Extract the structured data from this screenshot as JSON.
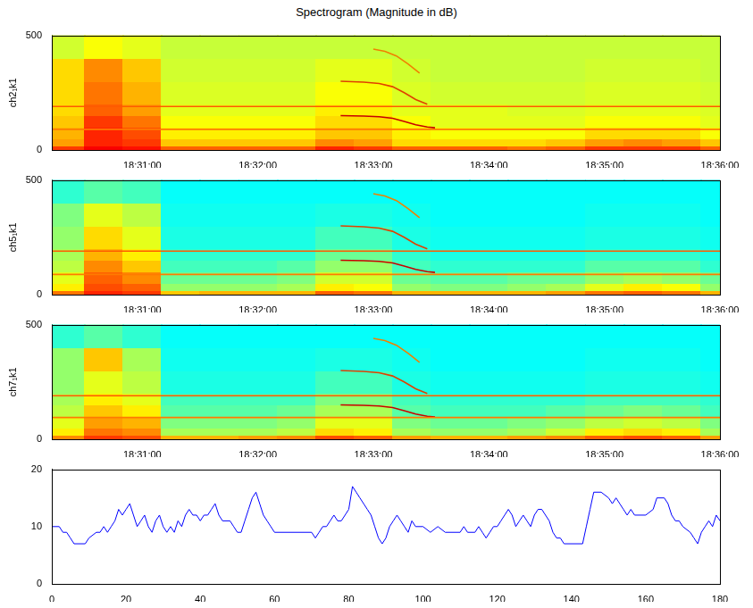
{
  "title": "Spectrogram (Magnitude in dB)",
  "chart_data": [
    {
      "type": "heatmap",
      "ylabel": "ch2₁k1",
      "xlim": [
        66613,
        66960
      ],
      "ylim": [
        0,
        500
      ],
      "xticks": [
        {
          "value": 66660,
          "label": "18:31:00"
        },
        {
          "value": 66720,
          "label": "18:32:00"
        },
        {
          "value": 66780,
          "label": "18:33:00"
        },
        {
          "value": 66840,
          "label": "18:34:00"
        },
        {
          "value": 66900,
          "label": "18:35:00"
        },
        {
          "value": 66960,
          "label": "18:36:00"
        }
      ],
      "yticks": [
        0,
        500
      ],
      "grid": false,
      "clim": [
        0,
        10
      ],
      "x_bins": [
        66613,
        66630,
        66650,
        66670,
        66690,
        66710,
        66730,
        66750,
        66770,
        66790,
        66810,
        66830,
        66850,
        66870,
        66890,
        66910,
        66930,
        66950,
        66960
      ],
      "y_bins": [
        0,
        20,
        50,
        100,
        150,
        200,
        300,
        400,
        500
      ],
      "cells": [
        [
          8.2,
          8.8,
          8.6,
          7.8,
          7.8,
          7.8,
          7.8,
          8.4,
          8.2,
          7.8,
          7.8,
          7.8,
          7.6,
          7.8,
          8.2,
          8.2,
          8.2,
          7.8
        ],
        [
          7.2,
          8.4,
          8.2,
          6.8,
          6.8,
          6.8,
          6.8,
          7.4,
          7.2,
          6.6,
          6.6,
          6.6,
          6.6,
          6.8,
          7.2,
          7.4,
          7.2,
          6.8
        ],
        [
          7,
          8.4,
          8,
          6.4,
          6.4,
          6.4,
          6.4,
          6.8,
          6.8,
          6.4,
          6.2,
          6.2,
          6.2,
          6.2,
          6.6,
          6.6,
          6.6,
          6.2
        ],
        [
          6.8,
          8.2,
          7.6,
          6.2,
          6.2,
          6.2,
          6.2,
          6.6,
          6.6,
          6.2,
          6,
          6,
          6,
          6,
          6.2,
          6.2,
          6.2,
          6
        ],
        [
          6.6,
          7.8,
          7.2,
          6,
          6,
          6,
          6,
          6.4,
          6.4,
          6,
          6,
          6,
          5.9,
          5.9,
          6,
          6,
          6,
          5.9
        ],
        [
          6.6,
          7.6,
          7,
          5.9,
          5.9,
          5.9,
          5.9,
          6.2,
          6.2,
          5.9,
          5.8,
          5.8,
          5.8,
          5.8,
          5.9,
          5.9,
          5.9,
          5.8
        ],
        [
          6.6,
          7.4,
          6.8,
          5.8,
          5.8,
          5.8,
          5.8,
          6,
          6,
          5.8,
          5.7,
          5.7,
          5.7,
          5.7,
          5.8,
          5.8,
          5.8,
          5.7
        ],
        [
          5.8,
          6.2,
          6,
          5.7,
          5.7,
          5.7,
          5.7,
          5.7,
          5.7,
          5.7,
          5.7,
          5.7,
          5.7,
          5.7,
          5.7,
          5.7,
          5.7,
          5.7
        ]
      ],
      "lines": [
        {
          "color": "#ff5a00",
          "x": [
            66613,
            66960
          ],
          "values": [
            190,
            190
          ]
        },
        {
          "color": "#ff7a00",
          "x": [
            66613,
            66960
          ],
          "values": [
            90,
            90
          ]
        },
        {
          "color": "#c80000",
          "x": [
            66763,
            66775,
            66783,
            66790,
            66796,
            66802,
            66808,
            66812
          ],
          "values": [
            150,
            148,
            145,
            138,
            125,
            110,
            100,
            97
          ]
        },
        {
          "color": "#e04000",
          "x": [
            66763,
            66775,
            66783,
            66790,
            66796,
            66802,
            66808
          ],
          "values": [
            300,
            296,
            290,
            276,
            250,
            220,
            200
          ]
        },
        {
          "color": "#f08000",
          "x": [
            66780,
            66786,
            66792,
            66798,
            66804
          ],
          "values": [
            440,
            430,
            410,
            375,
            335
          ]
        }
      ]
    },
    {
      "type": "heatmap",
      "ylabel": "ch5₁k1",
      "xlim": [
        66613,
        66960
      ],
      "ylim": [
        0,
        500
      ],
      "xticks": [
        {
          "value": 66660,
          "label": "18:31:00"
        },
        {
          "value": 66720,
          "label": "18:32:00"
        },
        {
          "value": 66780,
          "label": "18:33:00"
        },
        {
          "value": 66840,
          "label": "18:34:00"
        },
        {
          "value": 66900,
          "label": "18:35:00"
        },
        {
          "value": 66960,
          "label": "18:36:00"
        }
      ],
      "yticks": [
        0,
        500
      ],
      "grid": false,
      "clim": [
        0,
        10
      ],
      "x_bins": [
        66613,
        66630,
        66650,
        66670,
        66690,
        66710,
        66730,
        66750,
        66770,
        66790,
        66810,
        66830,
        66850,
        66870,
        66890,
        66910,
        66930,
        66950,
        66960
      ],
      "y_bins": [
        0,
        20,
        50,
        100,
        150,
        200,
        300,
        400,
        500
      ],
      "cells": [
        [
          7.6,
          8.4,
          8.2,
          6.8,
          7,
          7,
          7,
          7.8,
          7.6,
          7,
          7,
          7,
          7,
          7.2,
          7.6,
          7.8,
          7.6,
          7
        ],
        [
          6.4,
          8,
          7.8,
          5.2,
          5.2,
          5.2,
          5.4,
          6.4,
          6.2,
          5.2,
          5,
          5,
          5.2,
          5.4,
          6,
          6.4,
          6.2,
          5.2
        ],
        [
          6,
          7.8,
          7.4,
          4.8,
          4.8,
          4.8,
          5,
          5.8,
          5.8,
          4.8,
          4.6,
          4.6,
          4.8,
          4.8,
          5.2,
          5.4,
          5.2,
          4.8
        ],
        [
          5.6,
          7.4,
          6.8,
          4.4,
          4.4,
          4.4,
          4.6,
          5.2,
          5.2,
          4.4,
          4.2,
          4.2,
          4.2,
          4.2,
          4.6,
          4.6,
          4.6,
          4.2
        ],
        [
          5.4,
          7,
          6.4,
          4.2,
          4.2,
          4.2,
          4.2,
          4.8,
          4.8,
          4.2,
          4,
          4,
          4,
          4,
          4.2,
          4.2,
          4.2,
          4
        ],
        [
          5.2,
          6.6,
          6,
          4,
          4,
          4,
          4,
          4.4,
          4.4,
          4,
          3.9,
          3.9,
          3.9,
          3.9,
          4,
          4,
          4,
          3.9
        ],
        [
          5,
          6,
          5.6,
          3.9,
          3.9,
          3.9,
          3.9,
          4,
          4,
          3.9,
          3.8,
          3.8,
          3.8,
          3.8,
          3.9,
          3.9,
          3.9,
          3.8
        ],
        [
          4.2,
          4.6,
          4.4,
          3.8,
          3.8,
          3.8,
          3.8,
          3.8,
          3.8,
          3.8,
          3.8,
          3.8,
          3.8,
          3.8,
          3.8,
          3.8,
          3.8,
          3.8
        ]
      ],
      "lines": [
        {
          "color": "#ff5a00",
          "x": [
            66613,
            66960
          ],
          "values": [
            190,
            190
          ]
        },
        {
          "color": "#ff7a00",
          "x": [
            66613,
            66960
          ],
          "values": [
            88,
            88
          ]
        },
        {
          "color": "#c80000",
          "x": [
            66763,
            66775,
            66783,
            66790,
            66796,
            66802,
            66808,
            66812
          ],
          "values": [
            150,
            148,
            145,
            138,
            125,
            110,
            100,
            97
          ]
        },
        {
          "color": "#e04000",
          "x": [
            66763,
            66775,
            66783,
            66790,
            66796,
            66802,
            66808
          ],
          "values": [
            300,
            296,
            290,
            276,
            250,
            220,
            200
          ]
        },
        {
          "color": "#f08000",
          "x": [
            66780,
            66786,
            66792,
            66798,
            66804
          ],
          "values": [
            440,
            430,
            410,
            375,
            335
          ]
        }
      ]
    },
    {
      "type": "heatmap",
      "ylabel": "ch7₁k1",
      "xlim": [
        66613,
        66960
      ],
      "ylim": [
        0,
        500
      ],
      "xticks": [
        {
          "value": 66660,
          "label": "18:31:00"
        },
        {
          "value": 66720,
          "label": "18:32:00"
        },
        {
          "value": 66780,
          "label": "18:33:00"
        },
        {
          "value": 66840,
          "label": "18:34:00"
        },
        {
          "value": 66900,
          "label": "18:35:00"
        },
        {
          "value": 66960,
          "label": "18:36:00"
        }
      ],
      "yticks": [
        0,
        500
      ],
      "grid": false,
      "clim": [
        0,
        10
      ],
      "x_bins": [
        66613,
        66630,
        66650,
        66670,
        66690,
        66710,
        66730,
        66750,
        66770,
        66790,
        66810,
        66830,
        66850,
        66870,
        66890,
        66910,
        66930,
        66950,
        66960
      ],
      "y_bins": [
        0,
        20,
        50,
        100,
        150,
        200,
        300,
        400,
        500
      ],
      "cells": [
        [
          7.4,
          8.2,
          8,
          7,
          7,
          7.2,
          7.4,
          8,
          7.8,
          7.2,
          7,
          7,
          7.2,
          7.4,
          7.8,
          8,
          7.8,
          7.2
        ],
        [
          6.4,
          7.6,
          7.4,
          5.4,
          5.4,
          5.4,
          5.6,
          6.6,
          6.4,
          5.4,
          5.2,
          5.2,
          5.4,
          5.8,
          6.4,
          6.6,
          6.4,
          5.4
        ],
        [
          6,
          7.2,
          7,
          5,
          5,
          5,
          5.2,
          6,
          6,
          5,
          4.8,
          4.8,
          5,
          5.2,
          5.6,
          5.8,
          5.6,
          5
        ],
        [
          5.6,
          6.8,
          6.4,
          4.6,
          4.6,
          4.6,
          4.8,
          5.4,
          5.4,
          4.6,
          4.4,
          4.4,
          4.4,
          4.6,
          4.8,
          5,
          4.8,
          4.4
        ],
        [
          5.4,
          6.4,
          6,
          4.4,
          4.4,
          4.4,
          4.4,
          5,
          5,
          4.4,
          4.2,
          4.2,
          4.2,
          4.2,
          4.4,
          4.4,
          4.4,
          4.2
        ],
        [
          5.2,
          6,
          5.6,
          4,
          4,
          4,
          4,
          4.4,
          4.4,
          4,
          3.9,
          3.9,
          3.9,
          3.9,
          4,
          4,
          4,
          3.9
        ],
        [
          5.2,
          6.8,
          5.4,
          3.9,
          3.9,
          3.9,
          3.9,
          4,
          4,
          3.9,
          3.8,
          3.8,
          3.8,
          3.8,
          3.9,
          3.9,
          3.9,
          3.8
        ],
        [
          4.2,
          4.6,
          4.2,
          3.8,
          3.8,
          3.8,
          3.8,
          3.8,
          3.8,
          3.8,
          3.8,
          3.8,
          3.8,
          3.8,
          3.8,
          3.8,
          3.8,
          3.8
        ]
      ],
      "lines": [
        {
          "color": "#ff5a00",
          "x": [
            66613,
            66960
          ],
          "values": [
            190,
            190
          ]
        },
        {
          "color": "#ff7a00",
          "x": [
            66613,
            66960
          ],
          "values": [
            95,
            95
          ]
        },
        {
          "color": "#c80000",
          "x": [
            66763,
            66775,
            66783,
            66790,
            66796,
            66802,
            66808,
            66812
          ],
          "values": [
            150,
            148,
            145,
            138,
            125,
            110,
            100,
            97
          ]
        },
        {
          "color": "#e04000",
          "x": [
            66763,
            66775,
            66783,
            66790,
            66796,
            66802,
            66808
          ],
          "values": [
            300,
            296,
            290,
            276,
            250,
            220,
            200
          ]
        },
        {
          "color": "#f08000",
          "x": [
            66780,
            66786,
            66792,
            66798,
            66804
          ],
          "values": [
            440,
            430,
            410,
            375,
            335
          ]
        }
      ]
    },
    {
      "type": "line",
      "xlim": [
        0,
        180
      ],
      "ylim": [
        0,
        20
      ],
      "xticks": [
        0,
        20,
        40,
        60,
        80,
        100,
        120,
        140,
        160,
        180
      ],
      "yticks": [
        0,
        10,
        20
      ],
      "grid": false,
      "x": [
        0,
        2,
        3,
        4,
        5,
        6,
        9,
        10,
        12,
        13,
        14,
        15,
        16,
        17,
        18,
        19,
        20,
        21,
        22,
        23,
        24,
        25,
        26,
        27,
        28,
        29,
        30,
        31,
        32,
        33,
        34,
        35,
        36,
        37,
        38,
        39,
        40,
        41,
        42,
        43,
        44,
        45,
        46,
        48,
        49,
        50,
        51,
        52,
        53,
        54,
        55,
        56,
        57,
        58,
        59,
        60,
        70,
        71,
        72,
        73,
        74,
        75,
        76,
        77,
        78,
        79,
        80,
        81,
        82,
        83,
        84,
        85,
        86,
        87,
        88,
        89,
        90,
        91,
        92,
        93,
        94,
        95,
        96,
        97,
        98,
        100,
        102,
        104,
        106,
        110,
        111,
        112,
        114,
        115,
        116,
        117,
        118,
        119,
        120,
        121,
        122,
        123,
        124,
        125,
        126,
        127,
        128,
        129,
        130,
        131,
        132,
        133,
        134,
        135,
        136,
        137,
        138,
        143,
        144,
        145,
        146,
        148,
        150,
        151,
        152,
        153,
        154,
        155,
        156,
        157,
        160,
        162,
        163,
        165,
        166,
        167,
        168,
        169,
        170,
        172,
        173,
        174,
        175,
        176,
        177,
        178,
        179,
        180
      ],
      "series": [
        {
          "color": "#0000ff",
          "values": [
            10,
            10,
            9,
            9,
            8,
            7,
            7,
            8,
            9,
            9,
            10,
            9,
            10,
            11,
            13,
            12,
            13,
            14,
            12,
            10,
            11,
            12,
            10,
            9,
            11,
            12,
            10,
            9,
            10,
            9,
            11,
            10,
            12,
            13,
            12,
            12,
            11,
            12,
            12,
            13,
            14,
            12,
            11,
            11,
            10,
            9,
            9,
            11,
            13,
            15,
            16,
            14,
            12,
            11,
            10,
            9,
            9,
            8,
            9,
            10,
            10,
            11,
            12,
            11,
            11,
            12,
            13,
            17,
            16,
            15,
            14,
            13,
            12,
            10,
            8,
            7,
            8,
            10,
            11,
            12,
            11,
            10,
            9,
            11,
            10,
            10,
            9,
            10,
            9,
            9,
            10,
            9,
            9,
            10,
            9,
            8,
            9,
            10,
            10,
            11,
            12,
            13,
            12,
            10,
            11,
            12,
            11,
            10,
            12,
            13,
            13,
            12,
            11,
            9,
            8,
            8,
            7,
            7,
            10,
            13,
            16,
            16,
            15,
            14,
            15,
            14,
            13,
            12,
            13,
            12,
            12,
            13,
            15,
            15,
            14,
            12,
            11,
            11,
            10,
            9,
            8,
            7,
            9,
            10,
            11,
            10,
            12,
            11
          ]
        }
      ]
    }
  ]
}
